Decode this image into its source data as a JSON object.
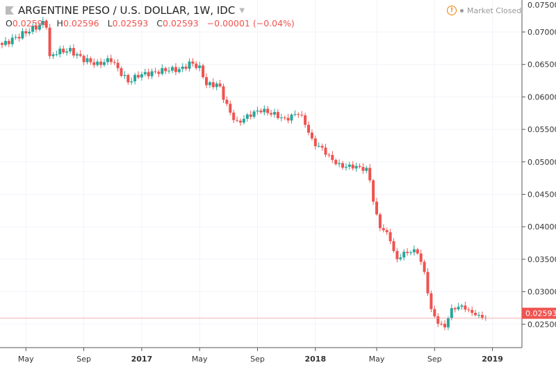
{
  "header": {
    "title": "ARGENTINE PESO / U.S. DOLLAR, 1W, IDC",
    "o_label": "O",
    "o": "0.02594",
    "h_label": "H",
    "h": "0.02596",
    "l_label": "L",
    "l": "0.02593",
    "c_label": "C",
    "c": "0.02593",
    "change": "−0.00001 (−0.04%)",
    "market_status": "Market Closed"
  },
  "colors": {
    "up": "#26a69a",
    "down": "#ef5350",
    "warn": "#f57c00"
  },
  "chart_data": {
    "type": "candlestick",
    "title": "ARGENTINE PESO / U.S. DOLLAR, 1W, IDC",
    "ylim": [
      0.0235,
      0.0755
    ],
    "y_ticks": [
      "0.07500",
      "0.07000",
      "0.06500",
      "0.06000",
      "0.05500",
      "0.05000",
      "0.04500",
      "0.04000",
      "0.03500",
      "0.03000",
      "0.02500"
    ],
    "x_ticks": [
      {
        "label": "May",
        "week": 7,
        "bold": false
      },
      {
        "label": "Sep",
        "week": 24,
        "bold": false
      },
      {
        "label": "2017",
        "week": 41,
        "bold": true
      },
      {
        "label": "May",
        "week": 58,
        "bold": false
      },
      {
        "label": "Sep",
        "week": 75,
        "bold": false
      },
      {
        "label": "2018",
        "week": 92,
        "bold": true
      },
      {
        "label": "May",
        "week": 110,
        "bold": false
      },
      {
        "label": "Sep",
        "week": 127,
        "bold": false
      },
      {
        "label": "2019",
        "week": 144,
        "bold": true
      }
    ],
    "weekly_close_keypoints": [
      [
        0,
        0.068
      ],
      [
        3.5,
        0.069
      ],
      [
        7.5,
        0.0701
      ],
      [
        11.6,
        0.0712
      ],
      [
        12.9,
        0.0719
      ],
      [
        13.7,
        0.0658
      ],
      [
        15.7,
        0.0669
      ],
      [
        19.8,
        0.0672
      ],
      [
        23.9,
        0.0658
      ],
      [
        28,
        0.065
      ],
      [
        32,
        0.0658
      ],
      [
        34.1,
        0.0642
      ],
      [
        37.1,
        0.0623
      ],
      [
        40.2,
        0.0634
      ],
      [
        44.3,
        0.0637
      ],
      [
        48.4,
        0.0642
      ],
      [
        52.4,
        0.0642
      ],
      [
        55.5,
        0.0653
      ],
      [
        58.6,
        0.0642
      ],
      [
        59.6,
        0.0619
      ],
      [
        63.7,
        0.0619
      ],
      [
        65.7,
        0.0589
      ],
      [
        68.8,
        0.0559
      ],
      [
        72.9,
        0.0573
      ],
      [
        75.9,
        0.058
      ],
      [
        80,
        0.0573
      ],
      [
        83.1,
        0.0565
      ],
      [
        87.1,
        0.0576
      ],
      [
        89.2,
        0.0557
      ],
      [
        91.2,
        0.053
      ],
      [
        94.3,
        0.0519
      ],
      [
        96.3,
        0.0506
      ],
      [
        99.4,
        0.0493
      ],
      [
        103.5,
        0.0493
      ],
      [
        107.6,
        0.0487
      ],
      [
        108.6,
        0.045
      ],
      [
        110.6,
        0.0402
      ],
      [
        113.7,
        0.0386
      ],
      [
        115.7,
        0.0348
      ],
      [
        117.8,
        0.0359
      ],
      [
        121.8,
        0.0364
      ],
      [
        123.9,
        0.0332
      ],
      [
        125.9,
        0.0273
      ],
      [
        128,
        0.0252
      ],
      [
        130,
        0.0246
      ],
      [
        132,
        0.0273
      ],
      [
        135.1,
        0.0278
      ],
      [
        137.1,
        0.027
      ],
      [
        140.2,
        0.0262
      ],
      [
        142.8,
        0.02593
      ]
    ],
    "last_price": "0.02593"
  }
}
